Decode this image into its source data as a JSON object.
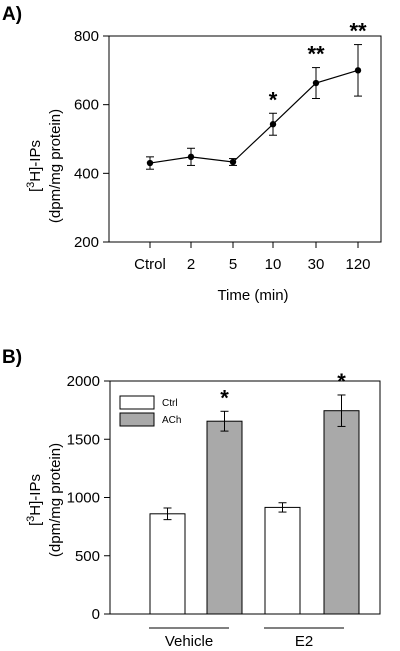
{
  "chart_data": [
    {
      "panel": "A)",
      "type": "line",
      "categories": [
        "Ctrol",
        "2",
        "5",
        "10",
        "30",
        "120"
      ],
      "values": [
        430,
        448,
        433,
        543,
        663,
        700
      ],
      "errors": [
        18,
        25,
        10,
        32,
        45,
        75
      ],
      "significance": [
        "",
        "",
        "",
        "*",
        "**",
        "**"
      ],
      "xlabel": "Time (min)",
      "ylabel_line1": "[3H]-IPs",
      "ylabel_line2": "(dpm/mg protein)",
      "ylim": [
        200,
        800
      ],
      "yticks": [
        "200",
        "400",
        "600",
        "800"
      ],
      "color": "#000000",
      "grid": false
    },
    {
      "panel": "B)",
      "type": "bar",
      "groups": [
        "Vehicle",
        "E2"
      ],
      "series": [
        {
          "name": "Ctrl",
          "values": [
            860,
            915
          ],
          "errors": [
            50,
            40
          ],
          "color": "#ffffff",
          "significance": [
            "",
            ""
          ]
        },
        {
          "name": "ACh",
          "values": [
            1655,
            1745
          ],
          "errors": [
            85,
            135
          ],
          "color": "#a9a9a9",
          "significance": [
            "*",
            "*"
          ]
        }
      ],
      "ylabel_line1": "[3H]-IPs",
      "ylabel_line2": "(dpm/mg protein)",
      "ylim": [
        0,
        2000
      ],
      "yticks": [
        "0",
        "500",
        "1000",
        "1500",
        "2000"
      ],
      "legend_position": "top-left",
      "grid": false
    }
  ]
}
